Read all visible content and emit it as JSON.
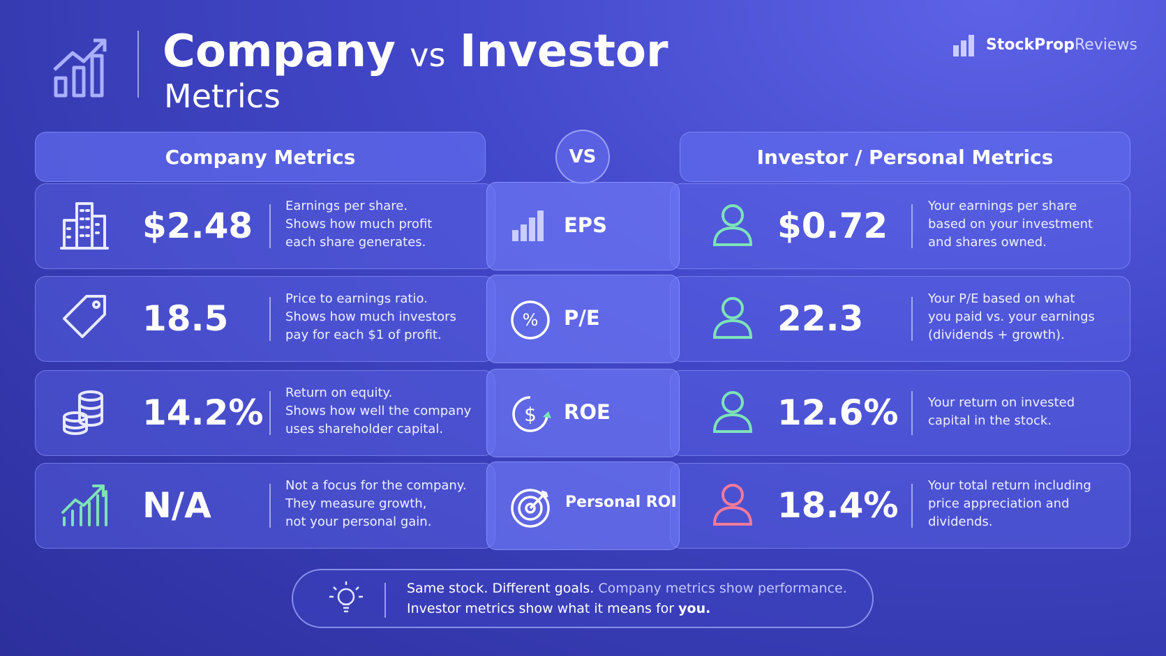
{
  "header": {
    "title_part1": "Company",
    "title_vs": "vs",
    "title_part2": "Investor",
    "subtitle": "Metrics"
  },
  "brand": {
    "name_bold": "StockProp",
    "name_light": "Reviews"
  },
  "columns": {
    "company": "Company Metrics",
    "vs": "VS",
    "investor": "Investor / Personal Metrics"
  },
  "rows": [
    {
      "metric": "EPS",
      "company_value": "$2.48",
      "company_desc": [
        "Earnings per share.",
        "Shows how much profit",
        "each share generates."
      ],
      "investor_value": "$0.72",
      "investor_desc": [
        "Your earnings per share",
        "based on your investment",
        "and shares owned."
      ]
    },
    {
      "metric": "P/E",
      "company_value": "18.5",
      "company_desc": [
        "Price to earnings ratio.",
        "Shows how much investors",
        "pay for each $1 of profit."
      ],
      "investor_value": "22.3",
      "investor_desc": [
        "Your P/E based on what",
        "you paid vs. your earnings",
        "(dividends + growth)."
      ]
    },
    {
      "metric": "ROE",
      "company_value": "14.2%",
      "company_desc": [
        "Return on equity.",
        "Shows how well the company",
        "uses shareholder capital."
      ],
      "investor_value": "12.6%",
      "investor_desc": [
        "Your return on invested",
        "capital in the stock."
      ]
    },
    {
      "metric": "Personal ROI",
      "company_value": "N/A",
      "company_desc": [
        "Not a focus for the company.",
        "They measure growth,",
        "not your personal gain."
      ],
      "investor_value": "18.4%",
      "investor_desc": [
        "Your total return including",
        "price appreciation and",
        "dividends."
      ]
    }
  ],
  "footer": {
    "part1": "Same stock. Different goals.",
    "part2": "Company metrics show performance.",
    "part3": "Investor metrics show what it means for",
    "part4": "you."
  }
}
